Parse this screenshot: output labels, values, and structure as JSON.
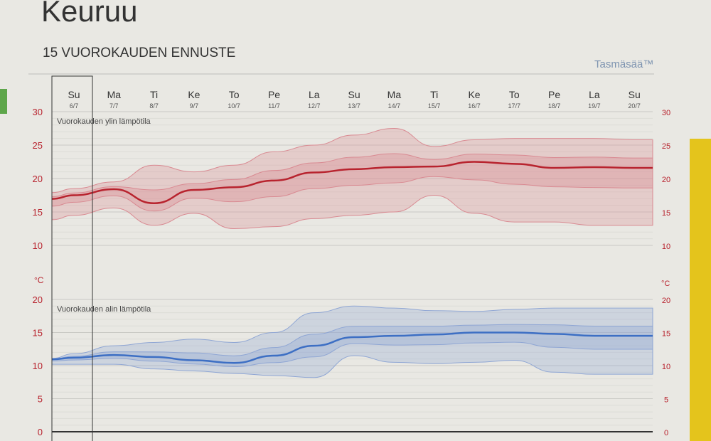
{
  "header": {
    "title": "Keuruu",
    "subtitle": "15 VUOROKAUDEN ENNUSTE",
    "brand": "Tasmäsää™"
  },
  "colors": {
    "max": "#b8232e",
    "min": "#3d6fc4",
    "max_band": "#d98a92",
    "min_band": "#8fa6d4",
    "accent_yellow": "#e4c41c"
  },
  "chart_data": [
    {
      "type": "line",
      "title": "Vuorokauden ylin lämpötila",
      "unit": "°C",
      "ylim": [
        10,
        30
      ],
      "yticks": [
        10,
        15,
        20,
        25,
        30
      ],
      "categories": [
        "Su",
        "Ma",
        "Ti",
        "Ke",
        "To",
        "Pe",
        "La",
        "Su",
        "Ma",
        "Ti",
        "Ke",
        "To",
        "Pe",
        "La",
        "Su"
      ],
      "dates": [
        "6/7",
        "7/7",
        "8/7",
        "9/7",
        "10/7",
        "11/7",
        "12/7",
        "13/7",
        "14/7",
        "15/7",
        "16/7",
        "17/7",
        "18/7",
        "19/7",
        "20/7"
      ],
      "mean": [
        17.5,
        18.4,
        16.3,
        18.3,
        18.7,
        19.7,
        20.9,
        21.4,
        21.7,
        21.8,
        22.5,
        22.2,
        21.6,
        21.7,
        21.6
      ],
      "upper": [
        18.5,
        19.5,
        22,
        21,
        22,
        24,
        25,
        26.5,
        27.5,
        24.8,
        25.8,
        26,
        26,
        26,
        25.8
      ],
      "lower": [
        14.5,
        15.6,
        13,
        14.8,
        12.5,
        12.8,
        14,
        14.5,
        15,
        17.5,
        14.8,
        13.5,
        13.5,
        13,
        13
      ]
    },
    {
      "type": "line",
      "title": "Vuorokauden alin lämpötila",
      "unit": "°C",
      "ylim": [
        0,
        20
      ],
      "yticks": [
        0,
        5,
        10,
        15,
        20
      ],
      "categories": [
        "Su",
        "Ma",
        "Ti",
        "Ke",
        "To",
        "Pe",
        "La",
        "Su",
        "Ma",
        "Ti",
        "Ke",
        "To",
        "Pe",
        "La",
        "Su"
      ],
      "dates": [
        "6/7",
        "7/7",
        "8/7",
        "9/7",
        "10/7",
        "11/7",
        "12/7",
        "13/7",
        "14/7",
        "15/7",
        "16/7",
        "17/7",
        "18/7",
        "19/7",
        "20/7"
      ],
      "mean": [
        11.2,
        11.6,
        11.3,
        10.8,
        10.4,
        11.5,
        13,
        14.3,
        14.5,
        14.7,
        15,
        15,
        14.8,
        14.5,
        14.5
      ],
      "upper": [
        11.8,
        13,
        13.5,
        14,
        13.5,
        15,
        18,
        19,
        18.7,
        18.3,
        18.2,
        18.5,
        18.7,
        18.7,
        18.7
      ],
      "lower": [
        10.2,
        10.2,
        9.5,
        9.2,
        8.8,
        8.5,
        8.2,
        11.5,
        10.5,
        10.3,
        10.5,
        10.8,
        9,
        8.7,
        8.7
      ]
    }
  ]
}
